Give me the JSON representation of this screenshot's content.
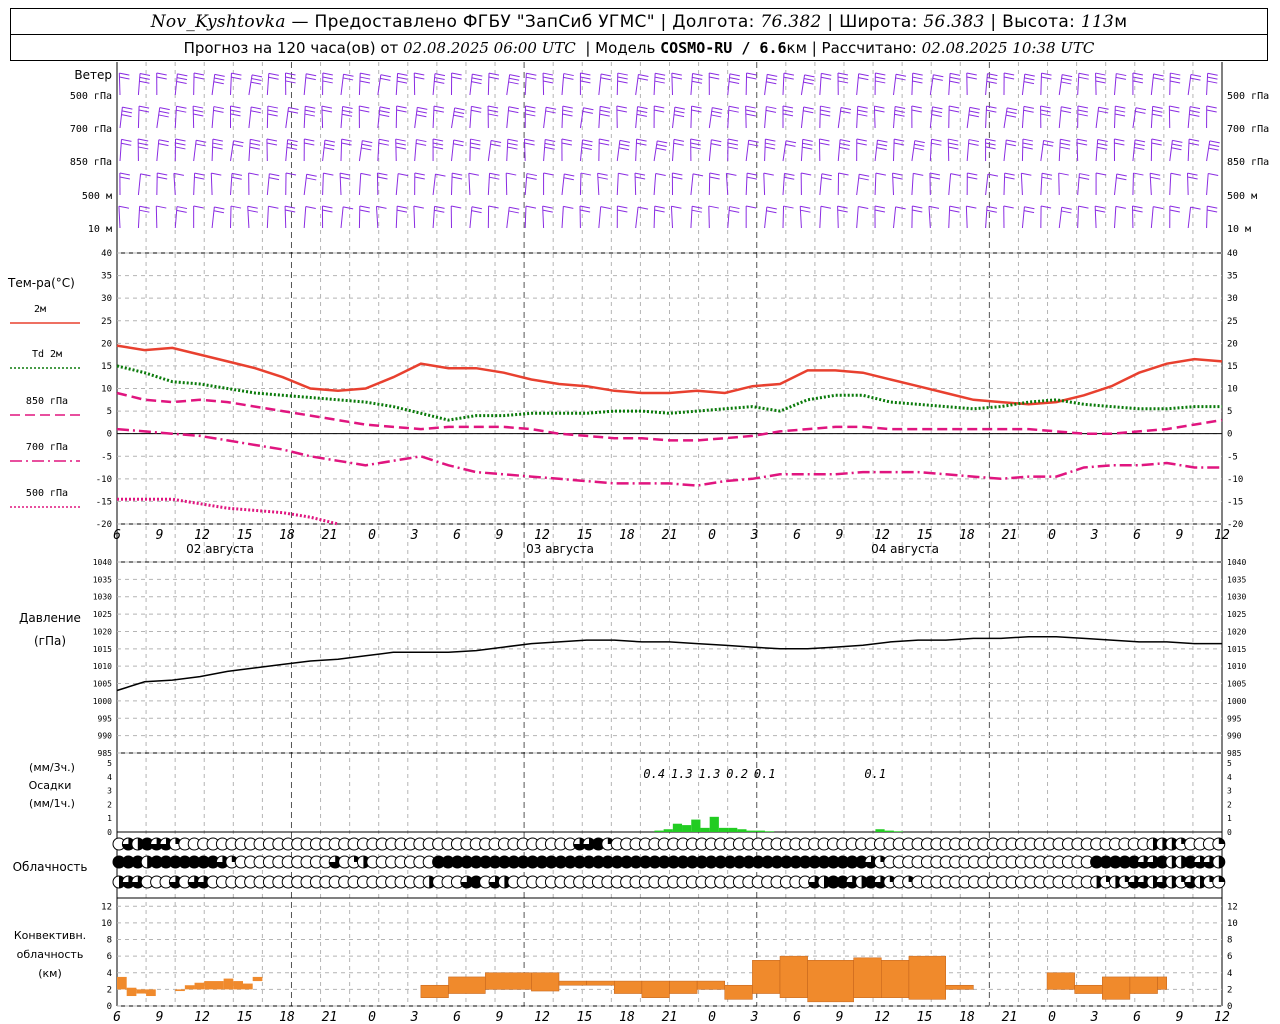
{
  "header": {
    "station": "Nov_Kyshtovka",
    "provider": "— Предоставлено ФГБУ \"ЗапСиб УГМС\" |",
    "lon_label": "Долгота:",
    "lon_value": "76.382",
    "lat_label": "| Широта:",
    "lat_value": "56.383",
    "alt_label": "| Высота:",
    "alt_value": "113",
    "alt_unit": "м",
    "forecast_label": "Прогноз на 120 часа(ов) от",
    "forecast_from": "02.08.2025 06:00 UTC",
    "model_label": "| Модель",
    "model_name": "COSMO-RU / 6.6",
    "model_unit": "км",
    "calc_label": "| Рассчитано:",
    "calc_time": "02.08.2025 10:38 UTC"
  },
  "colors": {
    "wind": "#8a2be2",
    "t2m": "#e8402f",
    "td2m": "#0a7a0a",
    "levels": "#e0157f",
    "precip": "#22cc22",
    "convective": "#f08a2c",
    "grid": "#b4b4b4"
  },
  "chart_data": [
    {
      "type": "wind-barbs",
      "title": "Ветер",
      "levels": [
        "500 гПа",
        "700 гПа",
        "850 гПа",
        "500 м",
        "10 м"
      ],
      "x_hours": [
        0,
        60
      ]
    },
    {
      "type": "line",
      "ylabel": "Тем-ра(°C)",
      "ylim": [
        -20,
        40
      ],
      "yticks": [
        -20,
        -15,
        -10,
        -5,
        0,
        5,
        10,
        15,
        20,
        25,
        30,
        35,
        40
      ],
      "x_tick_labels": [
        "6",
        "9",
        "12",
        "15",
        "18",
        "21",
        "0",
        "3",
        "6",
        "9",
        "12",
        "15",
        "18",
        "21",
        "0",
        "3",
        "6",
        "9",
        "12",
        "15",
        "18",
        "21",
        "0",
        "3",
        "6",
        "9",
        "12"
      ],
      "day_labels": [
        "02 августа",
        "03 августа",
        "04 августа"
      ],
      "series": [
        {
          "name": "2м",
          "style": "solid",
          "color": "t2m",
          "x": [
            0,
            3,
            6,
            9,
            12,
            15,
            18,
            21,
            24,
            27,
            30,
            33,
            36,
            39,
            42,
            45,
            48,
            51,
            54,
            57,
            60,
            63,
            66,
            69,
            72,
            75,
            78,
            81,
            84,
            87,
            90,
            93,
            96,
            99,
            102,
            105,
            108,
            111,
            114,
            117,
            120
          ],
          "values": [
            19.5,
            18.5,
            19,
            17.5,
            16,
            14.5,
            12.5,
            10,
            9.5,
            10,
            12.5,
            15.5,
            14.5,
            14.5,
            13.5,
            12,
            11,
            10.5,
            9.5,
            9,
            9,
            9.5,
            9,
            10.5,
            11,
            14,
            14,
            13.5,
            12,
            10.5,
            9,
            7.5,
            7,
            6.5,
            7,
            8.5,
            10.5,
            13.5,
            15.5,
            16.5,
            16
          ]
        },
        {
          "name": "Td 2м",
          "style": "dotted",
          "color": "td2m",
          "x": [
            0,
            3,
            6,
            9,
            12,
            15,
            18,
            21,
            24,
            27,
            30,
            33,
            36,
            39,
            42,
            45,
            48,
            51,
            54,
            57,
            60,
            63,
            66,
            69,
            72,
            75,
            78,
            81,
            84,
            87,
            90,
            93,
            96,
            99,
            102,
            105,
            108,
            111,
            114,
            117,
            120
          ],
          "values": [
            15,
            13.5,
            11.5,
            11,
            10,
            9,
            8.5,
            8,
            7.5,
            7,
            6,
            4.5,
            3,
            4,
            4,
            4.5,
            4.5,
            4.5,
            5,
            5,
            4.5,
            5,
            5.5,
            6,
            5,
            7.5,
            8.5,
            8.5,
            7,
            6.5,
            6,
            5.5,
            6,
            7,
            7.5,
            6.5,
            6,
            5.5,
            5.5,
            6,
            6
          ]
        },
        {
          "name": "850 гПа",
          "style": "dashed",
          "color": "levels",
          "x": [
            0,
            3,
            6,
            9,
            12,
            15,
            18,
            21,
            24,
            27,
            30,
            33,
            36,
            39,
            42,
            45,
            48,
            51,
            54,
            57,
            60,
            63,
            66,
            69,
            72,
            75,
            78,
            81,
            84,
            87,
            90,
            93,
            96,
            99,
            102,
            105,
            108,
            111,
            114,
            117,
            120
          ],
          "values": [
            9,
            7.5,
            7,
            7.5,
            7,
            6,
            5,
            4,
            3,
            2,
            1.5,
            1,
            1.5,
            1.5,
            1.5,
            1,
            0,
            -0.5,
            -1,
            -1,
            -1.5,
            -1.5,
            -1,
            -0.5,
            0.5,
            1,
            1.5,
            1.5,
            1,
            1,
            1,
            1,
            1,
            1,
            0.5,
            0,
            0,
            0.5,
            1,
            2,
            3
          ]
        },
        {
          "name": "700 гПа",
          "style": "dashdot",
          "color": "levels",
          "x": [
            0,
            3,
            6,
            9,
            12,
            15,
            18,
            21,
            24,
            27,
            30,
            33,
            36,
            39,
            42,
            45,
            48,
            51,
            54,
            57,
            60,
            63,
            66,
            69,
            72,
            75,
            78,
            81,
            84,
            87,
            90,
            93,
            96,
            99,
            102,
            105,
            108,
            111,
            114,
            117,
            120
          ],
          "values": [
            1,
            0.5,
            0,
            -0.5,
            -1.5,
            -2.5,
            -3.5,
            -5,
            -6,
            -7,
            -6,
            -5,
            -7,
            -8.5,
            -9,
            -9.5,
            -10,
            -10.5,
            -11,
            -11,
            -11,
            -11.5,
            -10.5,
            -10,
            -9,
            -9,
            -9,
            -8.5,
            -8.5,
            -8.5,
            -9,
            -9.5,
            -10,
            -9.5,
            -9.5,
            -7.5,
            -7,
            -7,
            -6.5,
            -7.5,
            -7.5
          ]
        },
        {
          "name": "500 гПа",
          "style": "dotted",
          "color": "levels",
          "x": [
            0,
            3,
            6,
            9,
            12,
            15,
            18,
            21,
            24
          ],
          "values": [
            -14.5,
            -14.5,
            -14.5,
            -15.5,
            -16.5,
            -17,
            -17.5,
            -18.5,
            -20
          ]
        }
      ]
    },
    {
      "type": "line",
      "ylabel": "Давление",
      "ylabel_unit": "(гПа)",
      "ylim": [
        985,
        1040
      ],
      "yticks": [
        985,
        990,
        995,
        1000,
        1005,
        1010,
        1015,
        1020,
        1025,
        1030,
        1035,
        1040
      ],
      "series": [
        {
          "name": "",
          "color": "#000000",
          "x": [
            0,
            3,
            6,
            9,
            12,
            15,
            18,
            21,
            24,
            27,
            30,
            33,
            36,
            39,
            42,
            45,
            48,
            51,
            54,
            57,
            60,
            63,
            66,
            69,
            72,
            75,
            78,
            81,
            84,
            87,
            90,
            93,
            96,
            99,
            102,
            105,
            108,
            111,
            114,
            117,
            120
          ],
          "values": [
            1003,
            1005.5,
            1006,
            1007,
            1008.5,
            1009.5,
            1010.5,
            1011.5,
            1012,
            1013,
            1014,
            1014,
            1014,
            1014.5,
            1015.5,
            1016.5,
            1017,
            1017.5,
            1017.5,
            1017,
            1017,
            1016.5,
            1016,
            1015.5,
            1015,
            1015,
            1015.5,
            1016,
            1017,
            1017.5,
            1017.5,
            1018,
            1018,
            1018.5,
            1018.5,
            1018,
            1017.5,
            1017,
            1017,
            1016.5,
            1016.5
          ]
        }
      ]
    },
    {
      "type": "bar",
      "ylabel": "Осадки",
      "units": [
        "(мм/3ч.)",
        "(мм/1ч.)"
      ],
      "ylim": [
        0,
        5
      ],
      "yticks": [
        0,
        1,
        2,
        3,
        4,
        5
      ],
      "labels": [
        {
          "x": 1.5,
          "text": "0.4"
        },
        {
          "x": 4.5,
          "text": "1.3"
        },
        {
          "x": 7.5,
          "text": "1.3"
        },
        {
          "x": 10.5,
          "text": "0.2"
        },
        {
          "x": 13.5,
          "text": "0.1"
        },
        {
          "x": 25.5,
          "text": "0.1"
        }
      ],
      "x_index_hours": [
        0
      ],
      "hourly_bars": [
        {
          "x": 0,
          "v": 0.1
        },
        {
          "x": 1,
          "v": 0.2
        },
        {
          "x": 2,
          "v": 0.6
        },
        {
          "x": 3,
          "v": 0.5
        },
        {
          "x": 4,
          "v": 0.9
        },
        {
          "x": 5,
          "v": 0.3
        },
        {
          "x": 6,
          "v": 1.1
        },
        {
          "x": 7,
          "v": 0.3
        },
        {
          "x": 8,
          "v": 0.3
        },
        {
          "x": 9,
          "v": 0.2
        },
        {
          "x": 10,
          "v": 0.1
        },
        {
          "x": 11,
          "v": 0.1
        },
        {
          "x": 12,
          "v": 0.05
        },
        {
          "x": 24,
          "v": 0.2
        },
        {
          "x": 25,
          "v": 0.1
        },
        {
          "x": 26,
          "v": 0.05
        }
      ]
    },
    {
      "type": "table",
      "title": "Облачность",
      "rows": [
        "0,75,50,100,75,75,25,0,0,0,0,0,0,0,0,0,0,0,0,0,0,0,0,0,0,0,0,0,0,0,0,0,0,0,0,0,0,0,0,0,0,0,0,0,0,0,0,0,0,75,75,100,25,0,0,0,0,0,0,0,0,0,0,0,0,0,0,0,0,0,0,0,0,0,0,0,0,0,0,0,0,0,0,0,0,0,0,0,0,0,0,0,0,0,0,0,0,0,0,0,0,0,0,0,0,0,0,0,0,0,50,50,50,25,0,0,0,25,50,25,0,0,0",
        "100,100,100,50,100,100,100,100,100,100,100,75,25,0,0,0,0,0,0,0,0,0,0,75,0,25,50,0,0,0,0,0,0,0,100,100,100,100,100,100,100,100,100,100,100,100,100,100,100,100,100,100,100,100,100,100,100,100,100,100,100,100,100,100,100,100,100,100,100,100,100,100,100,100,100,100,100,100,100,100,75,25,0,0,0,0,0,0,0,0,0,0,0,0,0,0,0,0,0,0,0,0,0,0,100,100,100,100,100,75,75,100,50,50,100,75,75,50,75,75",
        "50,75,75,0,0,0,75,0,75,75,0,0,0,0,0,0,0,0,0,0,0,0,0,0,0,0,0,0,0,0,0,0,0,50,0,0,0,75,100,0,75,50,0,0,0,0,0,0,0,0,0,0,0,0,0,0,0,0,0,0,0,0,0,0,0,0,0,0,0,0,0,0,0,0,75,50,100,100,75,50,100,75,25,0,25,0,0,0,0,0,0,0,0,0,0,0,0,0,0,0,0,0,0,0,50,25,50,25,75,75,50,75,50,25,75,50,25,25,50,50"
      ]
    },
    {
      "type": "bar",
      "ylabel": "Конвективн. облачность",
      "ylabel_unit": "(км)",
      "ylim": [
        0,
        13
      ],
      "yticks": [
        0,
        2,
        4,
        6,
        8,
        10,
        12
      ],
      "segments": [
        {
          "x0": 0,
          "x1": 1,
          "lo": 2,
          "hi": 3.5
        },
        {
          "x0": 1,
          "x1": 2,
          "lo": 1.2,
          "hi": 2.2
        },
        {
          "x0": 2,
          "x1": 3,
          "lo": 1.5,
          "hi": 2
        },
        {
          "x0": 3,
          "x1": 4,
          "lo": 1.2,
          "hi": 2
        },
        {
          "x0": 6,
          "x1": 7,
          "lo": 1.8,
          "hi": 2
        },
        {
          "x0": 7,
          "x1": 8,
          "lo": 2,
          "hi": 2.5
        },
        {
          "x0": 8,
          "x1": 9,
          "lo": 2,
          "hi": 2.8
        },
        {
          "x0": 9,
          "x1": 11,
          "lo": 2,
          "hi": 3
        },
        {
          "x0": 11,
          "x1": 12,
          "lo": 2,
          "hi": 3.3
        },
        {
          "x0": 12,
          "x1": 13,
          "lo": 2,
          "hi": 3
        },
        {
          "x0": 13,
          "x1": 14,
          "lo": 2,
          "hi": 2.7
        },
        {
          "x0": 14,
          "x1": 15,
          "lo": 3,
          "hi": 3.5
        }
      ]
    }
  ]
}
